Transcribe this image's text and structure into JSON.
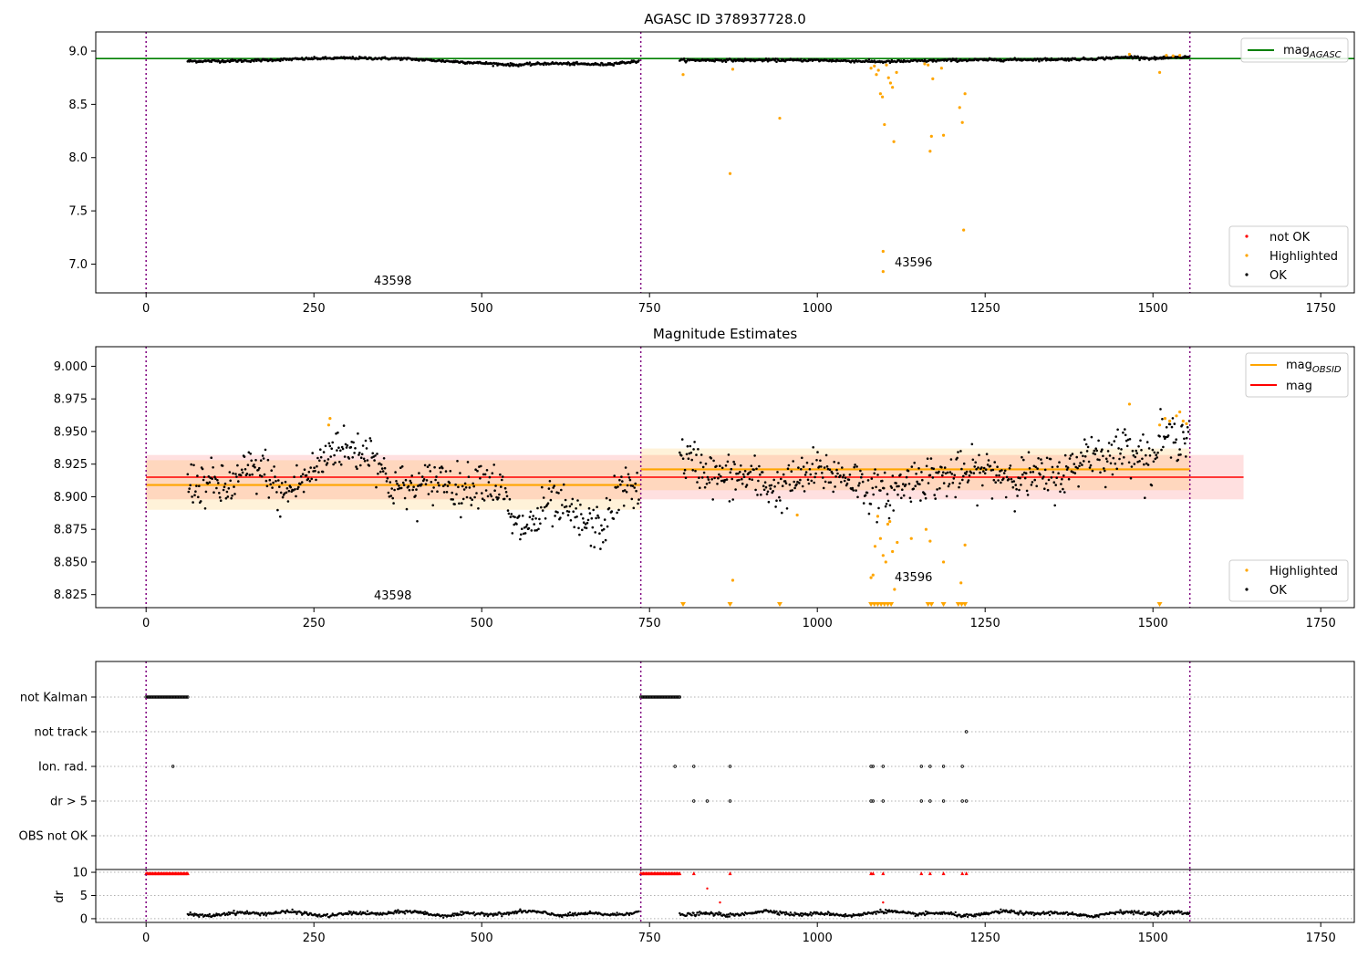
{
  "chart_data": [
    {
      "type": "scatter",
      "title": "AGASC ID 378937728.0",
      "xlabel": "",
      "ylabel": "",
      "xlim": [
        -75,
        1800
      ],
      "ylim": [
        6.73,
        9.18
      ],
      "xticks": [
        0,
        250,
        500,
        750,
        1000,
        1250,
        1500,
        1750
      ],
      "xtick_labels": [
        "0",
        "250",
        "500",
        "750",
        "1000",
        "1250",
        "1500",
        "1750"
      ],
      "yticks": [
        7.0,
        7.5,
        8.0,
        8.5,
        9.0
      ],
      "ytick_labels": [
        "7.0",
        "7.5",
        "8.0",
        "8.5",
        "9.0"
      ],
      "grid": false,
      "obs_boundaries": [
        0,
        737,
        1555
      ],
      "obsid_labels": [
        {
          "text": "43598",
          "x": 368,
          "y": 6.81
        },
        {
          "text": "43596",
          "x": 1140,
          "y": 7.01
        }
      ],
      "reference_line": {
        "name": "mag_AGASC",
        "value": 8.93,
        "x_range": [
          -75,
          1800
        ],
        "color": "#008000"
      },
      "legend_top": {
        "placement": "top-right",
        "entries": [
          {
            "label": "mag",
            "subscript": "AGASC",
            "color": "#008000"
          }
        ]
      },
      "legend_bottom": {
        "placement": "lower-right",
        "entries": [
          {
            "label": "not OK",
            "color": "#ff0000"
          },
          {
            "label": "Highlighted",
            "color": "#ffa500"
          },
          {
            "label": "OK",
            "color": "#000000"
          }
        ]
      },
      "ok_segments": [
        {
          "x_start": 62,
          "x_end": 735,
          "profile": [
            [
              62,
              8.905
            ],
            [
              150,
              8.91
            ],
            [
              250,
              8.93
            ],
            [
              300,
              8.935
            ],
            [
              380,
              8.93
            ],
            [
              450,
              8.905
            ],
            [
              550,
              8.87
            ],
            [
              600,
              8.885
            ],
            [
              680,
              8.875
            ],
            [
              735,
              8.905
            ]
          ]
        },
        {
          "x_start": 795,
          "x_end": 1555,
          "profile": [
            [
              795,
              8.915
            ],
            [
              900,
              8.915
            ],
            [
              1000,
              8.915
            ],
            [
              1100,
              8.9
            ],
            [
              1200,
              8.915
            ],
            [
              1300,
              8.92
            ],
            [
              1400,
              8.925
            ],
            [
              1470,
              8.945
            ],
            [
              1500,
              8.93
            ],
            [
              1555,
              8.945
            ]
          ]
        }
      ],
      "highlighted_points": [
        {
          "x": 800,
          "y": 8.78
        },
        {
          "x": 874,
          "y": 8.83
        },
        {
          "x": 944,
          "y": 8.37
        },
        {
          "x": 870,
          "y": 7.85
        },
        {
          "x": 1080,
          "y": 8.84
        },
        {
          "x": 1085,
          "y": 8.86
        },
        {
          "x": 1088,
          "y": 8.78
        },
        {
          "x": 1091,
          "y": 8.82
        },
        {
          "x": 1094,
          "y": 8.6
        },
        {
          "x": 1097,
          "y": 8.57
        },
        {
          "x": 1100,
          "y": 8.31
        },
        {
          "x": 1098,
          "y": 7.12
        },
        {
          "x": 1098,
          "y": 6.93
        },
        {
          "x": 1103,
          "y": 8.87
        },
        {
          "x": 1106,
          "y": 8.75
        },
        {
          "x": 1109,
          "y": 8.7
        },
        {
          "x": 1112,
          "y": 8.66
        },
        {
          "x": 1114,
          "y": 8.15
        },
        {
          "x": 1118,
          "y": 8.8
        },
        {
          "x": 1160,
          "y": 8.88
        },
        {
          "x": 1165,
          "y": 8.87
        },
        {
          "x": 1168,
          "y": 8.06
        },
        {
          "x": 1170,
          "y": 8.2
        },
        {
          "x": 1172,
          "y": 8.74
        },
        {
          "x": 1185,
          "y": 8.84
        },
        {
          "x": 1188,
          "y": 8.21
        },
        {
          "x": 1212,
          "y": 8.47
        },
        {
          "x": 1216,
          "y": 8.33
        },
        {
          "x": 1218,
          "y": 7.32
        },
        {
          "x": 1220,
          "y": 8.6
        },
        {
          "x": 1465,
          "y": 8.97
        },
        {
          "x": 1510,
          "y": 8.8
        },
        {
          "x": 1520,
          "y": 8.96
        },
        {
          "x": 1530,
          "y": 8.955
        },
        {
          "x": 1540,
          "y": 8.96
        }
      ]
    },
    {
      "type": "scatter",
      "title": "Magnitude Estimates",
      "xlabel": "",
      "ylabel": "",
      "xlim": [
        -75,
        1800
      ],
      "ylim": [
        8.815,
        9.015
      ],
      "xticks": [
        0,
        250,
        500,
        750,
        1000,
        1250,
        1500,
        1750
      ],
      "xtick_labels": [
        "0",
        "250",
        "500",
        "750",
        "1000",
        "1250",
        "1500",
        "1750"
      ],
      "yticks": [
        8.825,
        8.85,
        8.875,
        8.9,
        8.925,
        8.95,
        8.975,
        9.0
      ],
      "ytick_labels": [
        "8.825",
        "8.850",
        "8.875",
        "8.900",
        "8.925",
        "8.950",
        "8.975",
        "9.000"
      ],
      "grid": false,
      "obs_boundaries": [
        0,
        737,
        1555
      ],
      "obsid_labels": [
        {
          "text": "43598",
          "x": 368,
          "y": 8.822
        },
        {
          "text": "43596",
          "x": 1140,
          "y": 8.836
        }
      ],
      "mag_band": {
        "name": "mag",
        "value": 8.915,
        "low": 8.898,
        "high": 8.932,
        "x_range": [
          0,
          1635
        ],
        "color": "#ff0000"
      },
      "obsid_segments": [
        {
          "name": "mag_OBSID",
          "x_start": 0,
          "x_end": 737,
          "value": 8.909,
          "low": 8.89,
          "high": 8.928,
          "color": "#ffa500"
        },
        {
          "name": "mag_OBSID",
          "x_start": 737,
          "x_end": 1555,
          "value": 8.921,
          "low": 8.905,
          "high": 8.937,
          "color": "#ffa500"
        }
      ],
      "legend_top": {
        "placement": "top-right",
        "entries": [
          {
            "label": "mag",
            "subscript": "OBSID",
            "color": "#ffa500"
          },
          {
            "label": "mag",
            "color": "#ff0000"
          }
        ]
      },
      "legend_bottom": {
        "placement": "lower-right",
        "entries": [
          {
            "label": "Highlighted",
            "color": "#ffa500"
          },
          {
            "label": "OK",
            "color": "#000000"
          }
        ]
      },
      "ok_segments": [
        {
          "x_start": 62,
          "x_end": 735,
          "profile": [
            [
              62,
              8.91
            ],
            [
              100,
              8.91
            ],
            [
              120,
              8.905
            ],
            [
              150,
              8.92
            ],
            [
              180,
              8.92
            ],
            [
              200,
              8.9
            ],
            [
              240,
              8.915
            ],
            [
              260,
              8.925
            ],
            [
              280,
              8.94
            ],
            [
              300,
              8.935
            ],
            [
              340,
              8.935
            ],
            [
              360,
              8.91
            ],
            [
              400,
              8.905
            ],
            [
              440,
              8.915
            ],
            [
              470,
              8.905
            ],
            [
              500,
              8.915
            ],
            [
              530,
              8.905
            ],
            [
              550,
              8.875
            ],
            [
              580,
              8.88
            ],
            [
              600,
              8.895
            ],
            [
              620,
              8.89
            ],
            [
              650,
              8.88
            ],
            [
              680,
              8.875
            ],
            [
              700,
              8.9
            ],
            [
              720,
              8.91
            ],
            [
              735,
              8.905
            ]
          ]
        },
        {
          "x_start": 795,
          "x_end": 1555,
          "profile": [
            [
              795,
              8.93
            ],
            [
              820,
              8.925
            ],
            [
              850,
              8.915
            ],
            [
              900,
              8.915
            ],
            [
              940,
              8.905
            ],
            [
              980,
              8.915
            ],
            [
              1000,
              8.92
            ],
            [
              1050,
              8.915
            ],
            [
              1080,
              8.905
            ],
            [
              1100,
              8.9
            ],
            [
              1130,
              8.91
            ],
            [
              1150,
              8.915
            ],
            [
              1200,
              8.915
            ],
            [
              1250,
              8.92
            ],
            [
              1300,
              8.915
            ],
            [
              1350,
              8.915
            ],
            [
              1380,
              8.92
            ],
            [
              1400,
              8.935
            ],
            [
              1440,
              8.93
            ],
            [
              1460,
              8.94
            ],
            [
              1480,
              8.935
            ],
            [
              1500,
              8.925
            ],
            [
              1510,
              8.945
            ],
            [
              1530,
              8.945
            ],
            [
              1555,
              8.95
            ]
          ]
        }
      ],
      "highlighted_points": [
        {
          "x": 272,
          "y": 8.955
        },
        {
          "x": 274,
          "y": 8.96
        },
        {
          "x": 874,
          "y": 8.836
        },
        {
          "x": 970,
          "y": 8.886
        },
        {
          "x": 1080,
          "y": 8.838
        },
        {
          "x": 1083,
          "y": 8.84
        },
        {
          "x": 1086,
          "y": 8.862
        },
        {
          "x": 1090,
          "y": 8.885
        },
        {
          "x": 1094,
          "y": 8.868
        },
        {
          "x": 1098,
          "y": 8.855
        },
        {
          "x": 1102,
          "y": 8.85
        },
        {
          "x": 1105,
          "y": 8.879
        },
        {
          "x": 1108,
          "y": 8.881
        },
        {
          "x": 1112,
          "y": 8.858
        },
        {
          "x": 1115,
          "y": 8.829
        },
        {
          "x": 1119,
          "y": 8.865
        },
        {
          "x": 1140,
          "y": 8.868
        },
        {
          "x": 1162,
          "y": 8.875
        },
        {
          "x": 1168,
          "y": 8.866
        },
        {
          "x": 1188,
          "y": 8.85
        },
        {
          "x": 1214,
          "y": 8.834
        },
        {
          "x": 1220,
          "y": 8.863
        },
        {
          "x": 1465,
          "y": 8.971
        },
        {
          "x": 1510,
          "y": 8.955
        },
        {
          "x": 1518,
          "y": 8.96
        },
        {
          "x": 1525,
          "y": 8.958
        },
        {
          "x": 1535,
          "y": 8.962
        },
        {
          "x": 1540,
          "y": 8.965
        },
        {
          "x": 1545,
          "y": 8.958
        },
        {
          "x": 1550,
          "y": 8.956
        }
      ],
      "clipped_markers_x": [
        800,
        870,
        944,
        1080,
        1085,
        1090,
        1095,
        1100,
        1105,
        1110,
        1165,
        1170,
        1188,
        1210,
        1215,
        1220,
        1510
      ]
    },
    {
      "type": "scatter",
      "title": "",
      "xlabel": "",
      "ylabel": "",
      "categories": [
        "not Kalman",
        "not track",
        "Ion. rad.",
        "dr > 5",
        "OBS not OK"
      ],
      "grid": true,
      "obs_boundaries": [
        0,
        737,
        1555
      ],
      "flag_runs": [
        {
          "category": "not Kalman",
          "x_start": 0,
          "x_end": 62
        },
        {
          "category": "not Kalman",
          "x_start": 737,
          "x_end": 795
        }
      ],
      "flag_points": [
        {
          "category": "not track",
          "x": 1222
        },
        {
          "category": "Ion. rad.",
          "x": 40
        },
        {
          "category": "Ion. rad.",
          "x": 788
        },
        {
          "category": "Ion. rad.",
          "x": 816
        },
        {
          "category": "Ion. rad.",
          "x": 870
        },
        {
          "category": "Ion. rad.",
          "x": 1080
        },
        {
          "category": "Ion. rad.",
          "x": 1083
        },
        {
          "category": "Ion. rad.",
          "x": 1098
        },
        {
          "category": "Ion. rad.",
          "x": 1155
        },
        {
          "category": "Ion. rad.",
          "x": 1168
        },
        {
          "category": "Ion. rad.",
          "x": 1188
        },
        {
          "category": "Ion. rad.",
          "x": 1216
        },
        {
          "category": "dr > 5",
          "x": 816
        },
        {
          "category": "dr > 5",
          "x": 836
        },
        {
          "category": "dr > 5",
          "x": 870
        },
        {
          "category": "dr > 5",
          "x": 1080
        },
        {
          "category": "dr > 5",
          "x": 1083
        },
        {
          "category": "dr > 5",
          "x": 1098
        },
        {
          "category": "dr > 5",
          "x": 1155
        },
        {
          "category": "dr > 5",
          "x": 1168
        },
        {
          "category": "dr > 5",
          "x": 1188
        },
        {
          "category": "dr > 5",
          "x": 1216
        },
        {
          "category": "dr > 5",
          "x": 1222
        }
      ]
    },
    {
      "type": "scatter",
      "title": "",
      "xlabel": "",
      "ylabel": "dr",
      "xlim": [
        -75,
        1800
      ],
      "ylim": [
        -0.8,
        10.6
      ],
      "xticks": [
        0,
        250,
        500,
        750,
        1000,
        1250,
        1500,
        1750
      ],
      "xtick_labels": [
        "0",
        "250",
        "500",
        "750",
        "1000",
        "1250",
        "1500",
        "1750"
      ],
      "yticks": [
        0,
        5,
        10
      ],
      "ytick_labels": [
        "0",
        "5",
        "10"
      ],
      "grid": true,
      "obs_boundaries": [
        0,
        737,
        1555
      ],
      "ok_segments": [
        {
          "x_start": 62,
          "x_end": 735,
          "mean": 1.1,
          "amplitude": 0.5
        },
        {
          "x_start": 795,
          "x_end": 1555,
          "mean": 1.1,
          "amplitude": 0.55
        }
      ],
      "capped_runs": [
        {
          "x_start": 0,
          "x_end": 62,
          "y": 9.8
        },
        {
          "x_start": 737,
          "x_end": 795,
          "y": 9.8
        }
      ],
      "not_ok_points": [
        {
          "x": 816,
          "y": 9.8
        },
        {
          "x": 870,
          "y": 9.8
        },
        {
          "x": 1080,
          "y": 9.8
        },
        {
          "x": 1083,
          "y": 9.8
        },
        {
          "x": 1098,
          "y": 9.8
        },
        {
          "x": 1155,
          "y": 9.8
        },
        {
          "x": 1168,
          "y": 9.8
        },
        {
          "x": 1188,
          "y": 9.8
        },
        {
          "x": 1216,
          "y": 9.8
        },
        {
          "x": 1222,
          "y": 9.8
        },
        {
          "x": 836,
          "y": 6.5
        },
        {
          "x": 855,
          "y": 3.5
        },
        {
          "x": 1098,
          "y": 3.5
        }
      ]
    }
  ]
}
